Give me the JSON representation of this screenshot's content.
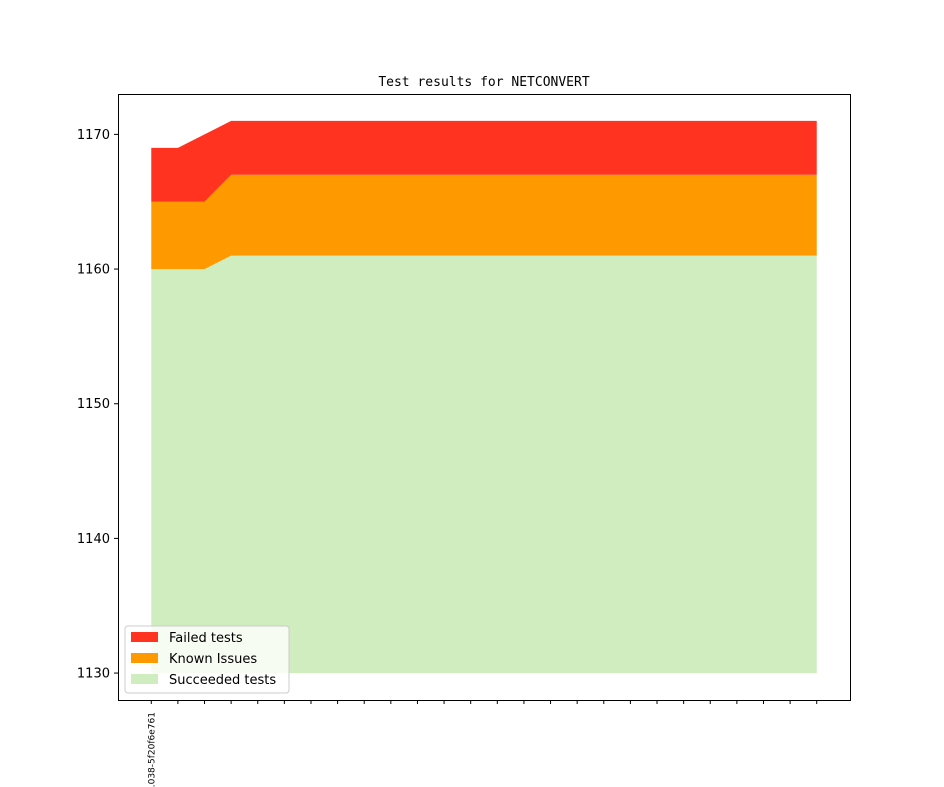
{
  "chart_data": {
    "type": "area",
    "title": "Test results for NETCONVERT",
    "xlabel": "",
    "ylabel": "",
    "x_count": 26,
    "x_tick_labels": [
      "…038-5f20f6e761"
    ],
    "ylim": [
      1128,
      1173
    ],
    "xlim": [
      -1.25,
      26.25
    ],
    "yticks": [
      1130,
      1140,
      1150,
      1160,
      1170
    ],
    "grid": false,
    "legend": {
      "placement": "lower-left"
    },
    "series": [
      {
        "name": "Succeeded tests",
        "color": "#cfedbf",
        "values": [
          1160,
          1160,
          1160,
          1161,
          1161,
          1161,
          1161,
          1161,
          1161,
          1161,
          1161,
          1161,
          1161,
          1161,
          1161,
          1161,
          1161,
          1161,
          1161,
          1161,
          1161,
          1161,
          1161,
          1161,
          1161,
          1161
        ]
      },
      {
        "name": "Known Issues",
        "color": "#ff9900",
        "values": [
          1165,
          1165,
          1165,
          1167,
          1167,
          1167,
          1167,
          1167,
          1167,
          1167,
          1167,
          1167,
          1167,
          1167,
          1167,
          1167,
          1167,
          1167,
          1167,
          1167,
          1167,
          1167,
          1167,
          1167,
          1167,
          1167
        ]
      },
      {
        "name": "Failed tests",
        "color": "#ff331f",
        "values": [
          1169,
          1169,
          1170,
          1171,
          1171,
          1171,
          1171,
          1171,
          1171,
          1171,
          1171,
          1171,
          1171,
          1171,
          1171,
          1171,
          1171,
          1171,
          1171,
          1171,
          1171,
          1171,
          1171,
          1171,
          1171,
          1171
        ]
      }
    ],
    "area_base": 1130,
    "legend_order": [
      "Failed tests",
      "Known Issues",
      "Succeeded tests"
    ]
  }
}
